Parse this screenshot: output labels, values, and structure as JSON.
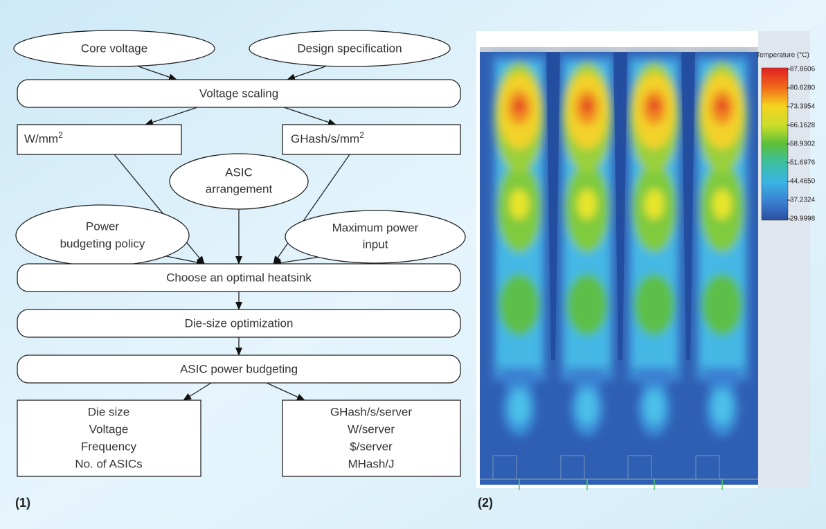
{
  "flowchart": {
    "inputs": [
      "Core voltage",
      "Design specification"
    ],
    "voltage_scaling": "Voltage scaling",
    "metrics": [
      {
        "text": "W/mm",
        "sup": "2"
      },
      {
        "text": "GHash/s/mm",
        "sup": "2"
      }
    ],
    "asic_arrangement": [
      "ASIC",
      "arrangement"
    ],
    "power_policy": [
      "Power",
      "budgeting policy"
    ],
    "max_power": [
      "Maximum power",
      "input"
    ],
    "heatsink": "Choose an optimal heatsink",
    "die_size_opt": "Die-size optimization",
    "power_budgeting": "ASIC power budgeting",
    "outputs_left": [
      "Die size",
      "Voltage",
      "Frequency",
      "No. of ASICs"
    ],
    "outputs_right": [
      "GHash/s/server",
      "W/server",
      "$/server",
      "MHash/J"
    ],
    "panel_label": "(1)"
  },
  "thermal": {
    "legend_title": "Temperature (°C)",
    "legend_values": [
      "87.8606",
      "80.6280",
      "73.3954",
      "66.1628",
      "58.9302",
      "51.6976",
      "44.4650",
      "37.2324",
      "29.9998"
    ],
    "panel_label": "(2)"
  }
}
